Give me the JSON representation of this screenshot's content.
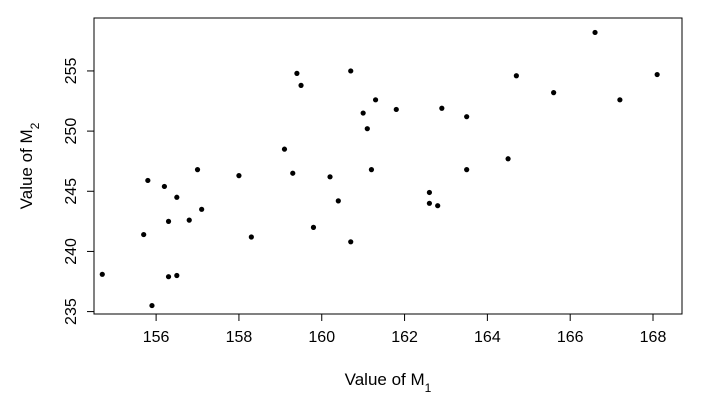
{
  "chart_data": {
    "type": "scatter",
    "xlabel": {
      "text": "Value of M",
      "subscript": "1"
    },
    "ylabel": {
      "text": "Value of M",
      "subscript": "2"
    },
    "xlim": [
      154.5,
      168.7
    ],
    "ylim": [
      234.8,
      259.4
    ],
    "x_ticks": [
      156,
      158,
      160,
      162,
      164,
      166,
      168
    ],
    "y_ticks": [
      235,
      240,
      245,
      250,
      255
    ],
    "grid": false,
    "legend": "none",
    "point_color": "#000000",
    "points": [
      {
        "x": 154.7,
        "y": 238.1
      },
      {
        "x": 155.7,
        "y": 241.4
      },
      {
        "x": 155.8,
        "y": 245.9
      },
      {
        "x": 155.9,
        "y": 235.5
      },
      {
        "x": 156.2,
        "y": 245.4
      },
      {
        "x": 156.3,
        "y": 242.5
      },
      {
        "x": 156.3,
        "y": 237.9
      },
      {
        "x": 156.5,
        "y": 244.5
      },
      {
        "x": 156.5,
        "y": 238.0
      },
      {
        "x": 156.8,
        "y": 242.6
      },
      {
        "x": 157.0,
        "y": 246.8
      },
      {
        "x": 157.1,
        "y": 243.5
      },
      {
        "x": 158.0,
        "y": 246.3
      },
      {
        "x": 158.3,
        "y": 241.2
      },
      {
        "x": 159.1,
        "y": 248.5
      },
      {
        "x": 159.3,
        "y": 246.5
      },
      {
        "x": 159.4,
        "y": 254.8
      },
      {
        "x": 159.5,
        "y": 253.8
      },
      {
        "x": 159.8,
        "y": 242.0
      },
      {
        "x": 160.2,
        "y": 246.2
      },
      {
        "x": 160.4,
        "y": 244.2
      },
      {
        "x": 160.7,
        "y": 255.0
      },
      {
        "x": 160.7,
        "y": 240.8
      },
      {
        "x": 161.0,
        "y": 251.5
      },
      {
        "x": 161.1,
        "y": 250.2
      },
      {
        "x": 161.2,
        "y": 246.8
      },
      {
        "x": 161.3,
        "y": 252.6
      },
      {
        "x": 161.8,
        "y": 251.8
      },
      {
        "x": 162.6,
        "y": 244.9
      },
      {
        "x": 162.6,
        "y": 244.0
      },
      {
        "x": 162.8,
        "y": 243.8
      },
      {
        "x": 162.9,
        "y": 251.9
      },
      {
        "x": 163.5,
        "y": 251.2
      },
      {
        "x": 163.5,
        "y": 246.8
      },
      {
        "x": 164.5,
        "y": 247.7
      },
      {
        "x": 164.7,
        "y": 254.6
      },
      {
        "x": 165.6,
        "y": 253.2
      },
      {
        "x": 166.6,
        "y": 258.2
      },
      {
        "x": 167.2,
        "y": 252.6
      },
      {
        "x": 168.1,
        "y": 254.7
      }
    ]
  }
}
